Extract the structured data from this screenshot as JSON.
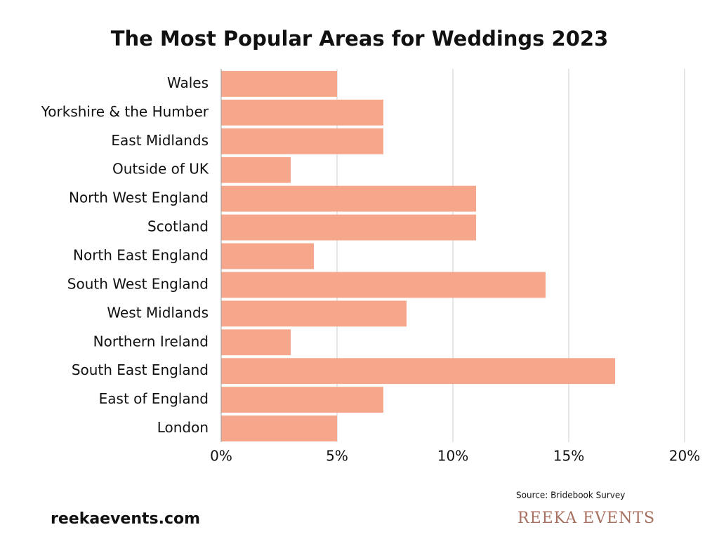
{
  "chart_data": {
    "type": "bar",
    "orientation": "horizontal",
    "title": "The Most Popular Areas for Weddings 2023",
    "categories": [
      "Wales",
      "Yorkshire & the Humber",
      "East Midlands",
      "Outside of UK",
      "North West England",
      "Scotland",
      "North East England",
      "South West England",
      "West Midlands",
      "Northern Ireland",
      "South East England",
      "East of England",
      "London"
    ],
    "values": [
      5,
      7,
      7,
      3,
      11,
      11,
      4,
      14,
      8,
      3,
      17,
      7,
      5
    ],
    "color": "#f6a68a",
    "xlim": [
      0,
      20
    ],
    "xticks": [
      {
        "value": 0,
        "label": "0%"
      },
      {
        "value": 5,
        "label": "5%"
      },
      {
        "value": 10,
        "label": "10%"
      },
      {
        "value": 15,
        "label": "15%"
      },
      {
        "value": 20,
        "label": "20%"
      }
    ],
    "grid": true,
    "source": "Source: Bridebook Survey",
    "website": "reekaevents.com",
    "brand": "REEKA EVENTS"
  }
}
